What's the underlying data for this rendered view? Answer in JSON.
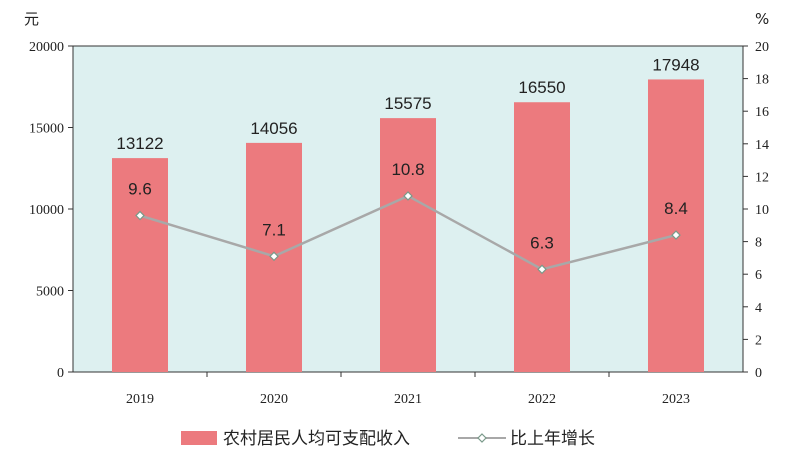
{
  "chart_data": {
    "type": "bar",
    "categories": [
      "2019",
      "2020",
      "2021",
      "2022",
      "2023"
    ],
    "series": [
      {
        "name": "农村居民人均可支配收入",
        "type": "bar",
        "axis": "left",
        "values": [
          13122,
          14056,
          15575,
          16550,
          17948
        ],
        "color": "#EC7A7E"
      },
      {
        "name": "比上年增长",
        "type": "line",
        "axis": "right",
        "values": [
          9.6,
          7.1,
          10.8,
          6.3,
          8.4
        ],
        "color": "#A8A8A8"
      }
    ],
    "y_left": {
      "unit": "元",
      "lim": [
        0,
        20000
      ],
      "ticks": [
        0,
        5000,
        10000,
        15000,
        20000
      ]
    },
    "y_right": {
      "unit": "%",
      "lim": [
        0,
        20
      ],
      "ticks": [
        0,
        2,
        4,
        6,
        8,
        10,
        12,
        14,
        16,
        18,
        20
      ]
    },
    "grid": false,
    "legend_position": "bottom",
    "plot_background": "#DDF0F0"
  }
}
